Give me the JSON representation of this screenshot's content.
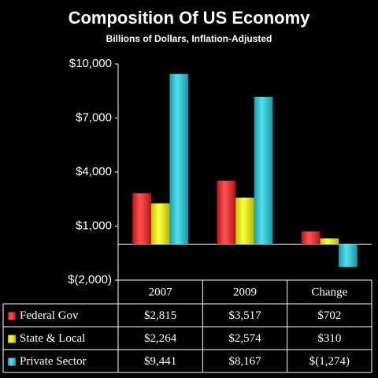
{
  "chart_data": {
    "type": "bar",
    "title": "Composition Of US Economy",
    "subtitle": "Billions of Dollars, Inflation-Adjusted",
    "categories": [
      "2007",
      "2009",
      "Change"
    ],
    "series": [
      {
        "name": "Federal Gov",
        "color": "#ff1a1a",
        "values": [
          2815,
          3517,
          702
        ],
        "value_labels": [
          "$2,815",
          "$3,517",
          "$702"
        ]
      },
      {
        "name": "State & Local",
        "color": "#ffff00",
        "values": [
          2264,
          2574,
          310
        ],
        "value_labels": [
          "$2,264",
          "$2,574",
          "$310"
        ]
      },
      {
        "name": "Private Sector",
        "color": "#1ad4e6",
        "values": [
          9441,
          8167,
          -1274
        ],
        "value_labels": [
          "$9,441",
          "$8,167",
          "$(1,274)"
        ]
      }
    ],
    "ylim": [
      -2000,
      10000
    ],
    "yticks": [
      {
        "value": -2000,
        "label": "$(2,000)"
      },
      {
        "value": 1000,
        "label": "$1,000"
      },
      {
        "value": 4000,
        "label": "$4,000"
      },
      {
        "value": 7000,
        "label": "$7,000"
      },
      {
        "value": 10000,
        "label": "$10,000"
      }
    ],
    "grid": false
  }
}
